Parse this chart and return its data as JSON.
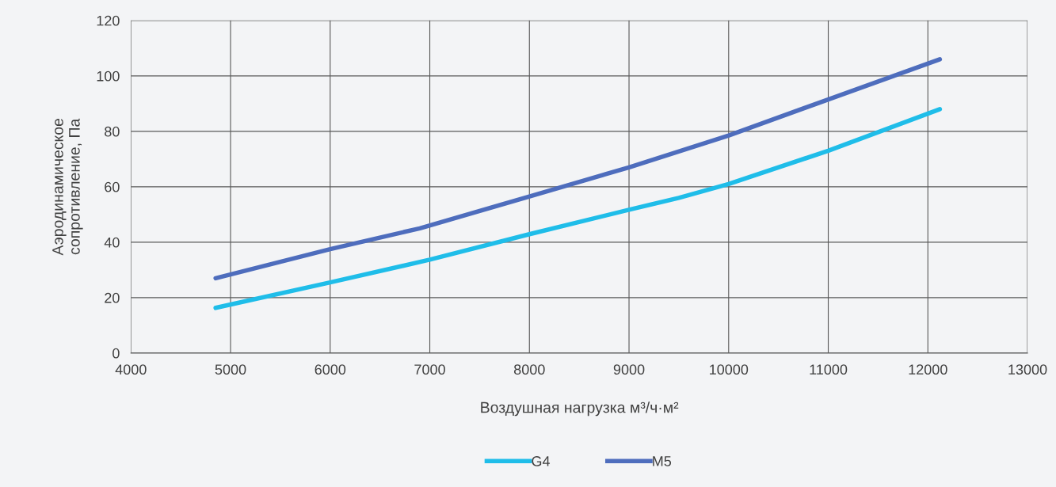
{
  "chart_data": {
    "type": "line",
    "xlabel": "Воздушная нагрузка м³/ч·м²",
    "ylabel": "Аэродинамическое\nсопротивление, Па",
    "series": [
      {
        "name": "G4",
        "color": "#1fbde9",
        "x": [
          4850,
          6000,
          7000,
          8000,
          9000,
          9500,
          10000,
          11000,
          12120
        ],
        "values": [
          16.3,
          25.5,
          33.7,
          42.9,
          51.7,
          56,
          61,
          73,
          88
        ]
      },
      {
        "name": "M5",
        "color": "#4e6dbd",
        "x": [
          4850,
          6000,
          6900,
          8000,
          9000,
          10000,
          11000,
          12120
        ],
        "values": [
          27,
          37.5,
          45,
          56.5,
          67,
          78.5,
          91.5,
          106
        ]
      }
    ],
    "xlim": [
      4000,
      13000
    ],
    "xticks": [
      4000,
      5000,
      6000,
      7000,
      8000,
      9000,
      10000,
      11000,
      12000,
      13000
    ],
    "ylim": [
      0,
      120
    ],
    "yticks": [
      0,
      20,
      40,
      60,
      80,
      100,
      120
    ],
    "grid": true,
    "legend": "bottom",
    "marker": "none",
    "line_style": "solid"
  }
}
